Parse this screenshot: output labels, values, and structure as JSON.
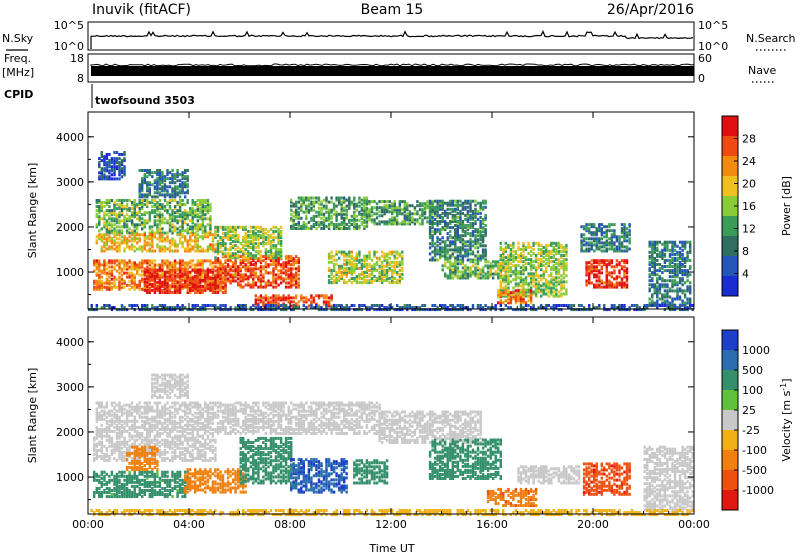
{
  "header": {
    "station": "Inuvik (fitACF)",
    "beam": "Beam 15",
    "date": "26/Apr/2016"
  },
  "top_panels": {
    "nsky": {
      "left_label": "N.Sky",
      "left_top": "10^5",
      "left_bottom": "10^0",
      "right_label": "N.Search",
      "right_top": "10^5",
      "right_bottom": "10^0"
    },
    "freq": {
      "label_line1": "Freq.",
      "label_line2": "[MHz]",
      "left_top": "18",
      "left_bottom": "8",
      "right_label": "Nave",
      "right_top": "60",
      "right_bottom": "0"
    },
    "cpid": {
      "label": "CPID",
      "program": "twofsound 3503"
    }
  },
  "colors": {
    "scale": [
      "#1a2cd0",
      "#2455b8",
      "#2f6f60",
      "#3b9c5a",
      "#8acc38",
      "#f0c020",
      "#f08a10",
      "#ee4a12",
      "#e01010"
    ],
    "velocity": [
      "#1c3ec8",
      "#2b6eb0",
      "#33906a",
      "#5fc23a",
      "#c8c8c8",
      "#f0b018",
      "#f08010",
      "#ee5010",
      "#e01a10"
    ]
  },
  "chart_data": [
    {
      "type": "heatmap",
      "title": "",
      "parameter": "Power",
      "xlabel": "Time UT",
      "ylabel": "Slant Range [km]",
      "xlim": [
        "00:00",
        "24:00"
      ],
      "ylim": [
        180,
        4550
      ],
      "x_ticks": [
        "00:00",
        "04:00",
        "08:00",
        "12:00",
        "16:00",
        "20:00",
        "00:00"
      ],
      "y_ticks": [
        "1000",
        "2000",
        "3000",
        "4000"
      ],
      "colorbar": {
        "label": "Power [dB]",
        "min": 0,
        "max": 32,
        "ticks": [
          "4",
          "8",
          "12",
          "16",
          "20",
          "24",
          "28"
        ]
      },
      "blobs": [
        {
          "t0": 0.3,
          "t1": 4.8,
          "r0": 1900,
          "r1": 2650,
          "v": 14
        },
        {
          "t0": 0.3,
          "t1": 5.0,
          "r0": 1500,
          "r1": 1900,
          "v": 20
        },
        {
          "t0": 0.2,
          "t1": 5.2,
          "r0": 650,
          "r1": 1300,
          "v": 24
        },
        {
          "t0": 2.2,
          "t1": 5.4,
          "r0": 580,
          "r1": 1100,
          "v": 29
        },
        {
          "t0": 5.0,
          "t1": 8.3,
          "r0": 700,
          "r1": 1400,
          "v": 27
        },
        {
          "t0": 6.6,
          "t1": 9.6,
          "r0": 280,
          "r1": 520,
          "v": 27
        },
        {
          "t0": 5.0,
          "t1": 7.6,
          "r0": 1350,
          "r1": 2050,
          "v": 16
        },
        {
          "t0": 2.0,
          "t1": 4.0,
          "r0": 2700,
          "r1": 3300,
          "v": 9
        },
        {
          "t0": 0.4,
          "t1": 1.5,
          "r0": 3100,
          "r1": 3700,
          "v": 5
        },
        {
          "t0": 8.0,
          "t1": 11.0,
          "r0": 2000,
          "r1": 2700,
          "v": 12
        },
        {
          "t0": 9.5,
          "t1": 12.4,
          "r0": 800,
          "r1": 1500,
          "v": 17
        },
        {
          "t0": 11.0,
          "t1": 13.6,
          "r0": 2100,
          "r1": 2600,
          "v": 12
        },
        {
          "t0": 13.5,
          "t1": 15.7,
          "r0": 1300,
          "r1": 2650,
          "v": 10
        },
        {
          "t0": 14.0,
          "t1": 16.6,
          "r0": 900,
          "r1": 1300,
          "v": 14
        },
        {
          "t0": 16.3,
          "t1": 19.0,
          "r0": 500,
          "r1": 1700,
          "v": 16
        },
        {
          "t0": 16.2,
          "t1": 17.6,
          "r0": 350,
          "r1": 650,
          "v": 24
        },
        {
          "t0": 19.7,
          "t1": 21.4,
          "r0": 700,
          "r1": 1300,
          "v": 29
        },
        {
          "t0": 19.5,
          "t1": 21.5,
          "r0": 1500,
          "r1": 2100,
          "v": 9
        },
        {
          "t0": 22.2,
          "t1": 23.9,
          "r0": 300,
          "r1": 1700,
          "v": 9
        },
        {
          "t0": 0.0,
          "t1": 24.0,
          "r0": 200,
          "r1": 330,
          "v": 6
        }
      ]
    },
    {
      "type": "heatmap",
      "title": "",
      "parameter": "Velocity",
      "xlabel": "Time UT",
      "ylabel": "Slant Range [km]",
      "xlim": [
        "00:00",
        "24:00"
      ],
      "ylim": [
        180,
        4550
      ],
      "x_ticks": [
        "00:00",
        "04:00",
        "08:00",
        "12:00",
        "16:00",
        "20:00",
        "00:00"
      ],
      "y_ticks": [
        "1000",
        "2000",
        "3000",
        "4000"
      ],
      "colorbar": {
        "label": "Velocity [m s^-1]",
        "ticks": [
          "1000",
          "500",
          "100",
          "25",
          "-25",
          "-100",
          "-500",
          "-1000"
        ]
      },
      "blobs": [
        {
          "t0": 0.3,
          "t1": 11.5,
          "r0": 2000,
          "r1": 2700,
          "v": 0
        },
        {
          "t0": 0.2,
          "t1": 5.0,
          "r0": 1400,
          "r1": 1950,
          "v": 0
        },
        {
          "t0": 11.5,
          "t1": 15.5,
          "r0": 1800,
          "r1": 2500,
          "v": 0
        },
        {
          "t0": 0.2,
          "t1": 4.0,
          "r0": 600,
          "r1": 1150,
          "v": 150
        },
        {
          "t0": 1.5,
          "t1": 2.8,
          "r0": 1200,
          "r1": 1700,
          "v": -300
        },
        {
          "t0": 3.8,
          "t1": 6.2,
          "r0": 700,
          "r1": 1200,
          "v": -150
        },
        {
          "t0": 6.0,
          "t1": 8.0,
          "r0": 900,
          "r1": 1900,
          "v": 300
        },
        {
          "t0": 8.0,
          "t1": 10.2,
          "r0": 700,
          "r1": 1450,
          "v": 900
        },
        {
          "t0": 10.5,
          "t1": 11.8,
          "r0": 900,
          "r1": 1400,
          "v": 300
        },
        {
          "t0": 13.5,
          "t1": 16.3,
          "r0": 1000,
          "r1": 1900,
          "v": 300
        },
        {
          "t0": 15.8,
          "t1": 17.8,
          "r0": 400,
          "r1": 800,
          "v": -400
        },
        {
          "t0": 17.0,
          "t1": 19.5,
          "r0": 900,
          "r1": 1300,
          "v": 0
        },
        {
          "t0": 19.6,
          "t1": 21.5,
          "r0": 650,
          "r1": 1350,
          "v": -800
        },
        {
          "t0": 22.0,
          "t1": 24.0,
          "r0": 300,
          "r1": 1700,
          "v": 0
        },
        {
          "t0": 2.5,
          "t1": 4.0,
          "r0": 2800,
          "r1": 3300,
          "v": 0
        },
        {
          "t0": 0.0,
          "t1": 24.0,
          "r0": 200,
          "r1": 330,
          "v": -50
        }
      ]
    }
  ]
}
